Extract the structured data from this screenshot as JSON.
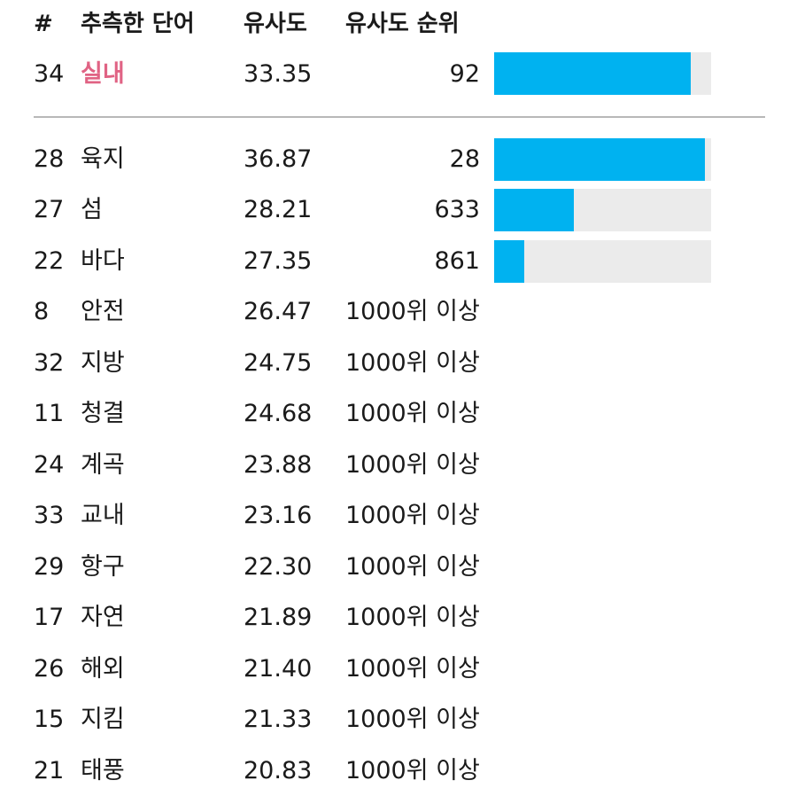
{
  "header": {
    "num": "#",
    "word": "추측한 단어",
    "similarity": "유사도",
    "rank": "유사도 순위"
  },
  "latest": {
    "num": "34",
    "word": "실내",
    "similarity": "33.35",
    "rank": "92",
    "bar_fraction": 0.908
  },
  "rows": [
    {
      "num": "28",
      "word": "육지",
      "similarity": "36.87",
      "rank": "28",
      "bar_fraction": 0.972
    },
    {
      "num": "27",
      "word": "섬",
      "similarity": "28.21",
      "rank": "633",
      "bar_fraction": 0.367
    },
    {
      "num": "22",
      "word": "바다",
      "similarity": "27.35",
      "rank": "861",
      "bar_fraction": 0.139
    },
    {
      "num": "8",
      "word": "안전",
      "similarity": "26.47",
      "rank": "1000위 이상"
    },
    {
      "num": "32",
      "word": "지방",
      "similarity": "24.75",
      "rank": "1000위 이상"
    },
    {
      "num": "11",
      "word": "청결",
      "similarity": "24.68",
      "rank": "1000위 이상"
    },
    {
      "num": "24",
      "word": "계곡",
      "similarity": "23.88",
      "rank": "1000위 이상"
    },
    {
      "num": "33",
      "word": "교내",
      "similarity": "23.16",
      "rank": "1000위 이상"
    },
    {
      "num": "29",
      "word": "항구",
      "similarity": "22.30",
      "rank": "1000위 이상"
    },
    {
      "num": "17",
      "word": "자연",
      "similarity": "21.89",
      "rank": "1000위 이상"
    },
    {
      "num": "26",
      "word": "해외",
      "similarity": "21.40",
      "rank": "1000위 이상"
    },
    {
      "num": "15",
      "word": "지킴",
      "similarity": "21.33",
      "rank": "1000위 이상"
    },
    {
      "num": "21",
      "word": "태풍",
      "similarity": "20.83",
      "rank": "1000위 이상"
    }
  ],
  "colors": {
    "bar_fill": "#00b2f0",
    "bar_track": "#ebebeb",
    "latest_word": "#e06384"
  }
}
